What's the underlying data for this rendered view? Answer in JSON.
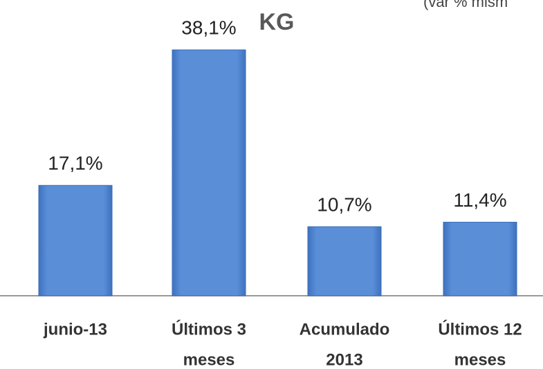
{
  "chart_data": {
    "type": "bar",
    "title": "KG",
    "subtitle": "(var % mism",
    "categories": [
      [
        "junio-13"
      ],
      [
        "Últimos 3",
        "meses"
      ],
      [
        "Acumulado",
        "2013"
      ],
      [
        "Últimos 12",
        "meses"
      ]
    ],
    "values": [
      17.1,
      38.1,
      10.7,
      11.4
    ],
    "value_labels": [
      "17,1%",
      "38,1%",
      "10,7%",
      "11,4%"
    ],
    "color": "#5a8fd8"
  }
}
